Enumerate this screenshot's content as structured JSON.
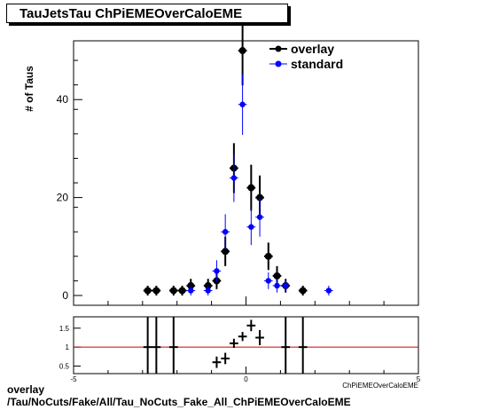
{
  "chart_data": {
    "title": "TauJetsTau ChPiEMEOverCaloEME",
    "ylabel": "# of Taus",
    "xlabel": "ChPiEMEOverCaloEME",
    "type": "scatter",
    "xlim": [
      -5,
      5
    ],
    "ylim": [
      -2,
      52
    ],
    "yticks": [
      0,
      20,
      40
    ],
    "legend_position": "top-right",
    "series": [
      {
        "name": "overlay",
        "color": "#000000",
        "points": [
          {
            "x": -2.85,
            "y": 1,
            "err": 1
          },
          {
            "x": -2.6,
            "y": 1,
            "err": 1
          },
          {
            "x": -2.1,
            "y": 1,
            "err": 1
          },
          {
            "x": -1.85,
            "y": 1,
            "err": 1
          },
          {
            "x": -1.6,
            "y": 2,
            "err": 1.4
          },
          {
            "x": -1.1,
            "y": 2,
            "err": 1.4
          },
          {
            "x": -0.85,
            "y": 3,
            "err": 1.7
          },
          {
            "x": -0.6,
            "y": 9,
            "err": 3
          },
          {
            "x": -0.35,
            "y": 26,
            "err": 5.1
          },
          {
            "x": -0.1,
            "y": 50,
            "err": 7.1
          },
          {
            "x": 0.15,
            "y": 22,
            "err": 4.7
          },
          {
            "x": 0.4,
            "y": 20,
            "err": 4.5
          },
          {
            "x": 0.65,
            "y": 8,
            "err": 2.8
          },
          {
            "x": 0.9,
            "y": 4,
            "err": 2
          },
          {
            "x": 1.15,
            "y": 2,
            "err": 1.4
          },
          {
            "x": 1.65,
            "y": 1,
            "err": 1
          }
        ]
      },
      {
        "name": "standard",
        "color": "#0000ff",
        "points": [
          {
            "x": -1.6,
            "y": 1,
            "err": 1
          },
          {
            "x": -1.1,
            "y": 1,
            "err": 1
          },
          {
            "x": -0.85,
            "y": 5,
            "err": 2.2
          },
          {
            "x": -0.6,
            "y": 13,
            "err": 3.6
          },
          {
            "x": -0.35,
            "y": 24,
            "err": 4.9
          },
          {
            "x": -0.1,
            "y": 39,
            "err": 6.2
          },
          {
            "x": 0.15,
            "y": 14,
            "err": 3.7
          },
          {
            "x": 0.4,
            "y": 16,
            "err": 4
          },
          {
            "x": 0.65,
            "y": 3,
            "err": 1.7
          },
          {
            "x": 0.9,
            "y": 2,
            "err": 1.4
          },
          {
            "x": 1.15,
            "y": 2,
            "err": 1.4
          },
          {
            "x": 2.4,
            "y": 1,
            "err": 1
          }
        ]
      }
    ],
    "ratio": {
      "ylim": [
        0.3,
        1.8
      ],
      "yticks": [
        0.5,
        1,
        1.5
      ],
      "xticks": [
        -5,
        0,
        5
      ],
      "reference_line_y": 1,
      "reference_line_color": "#cc0000",
      "points": [
        {
          "x": -2.85,
          "y": 1,
          "err": 1.0
        },
        {
          "x": -2.6,
          "y": 1,
          "err": 1.0
        },
        {
          "x": -2.1,
          "y": 1,
          "err": 1.0
        },
        {
          "x": -0.85,
          "y": 0.6,
          "err": 0.15
        },
        {
          "x": -0.6,
          "y": 0.7,
          "err": 0.15
        },
        {
          "x": -0.35,
          "y": 1.1,
          "err": 0.12
        },
        {
          "x": -0.1,
          "y": 1.28,
          "err": 0.12
        },
        {
          "x": 0.15,
          "y": 1.57,
          "err": 0.15
        },
        {
          "x": 0.4,
          "y": 1.25,
          "err": 0.2
        },
        {
          "x": 1.15,
          "y": 1,
          "err": 1.0
        },
        {
          "x": 1.65,
          "y": 1,
          "err": 1.0
        }
      ]
    }
  },
  "footer": {
    "line1": "overlay",
    "line2": "/Tau/NoCuts/Fake/All/Tau_NoCuts_Fake_All_ChPiEMEOverCaloEME"
  }
}
